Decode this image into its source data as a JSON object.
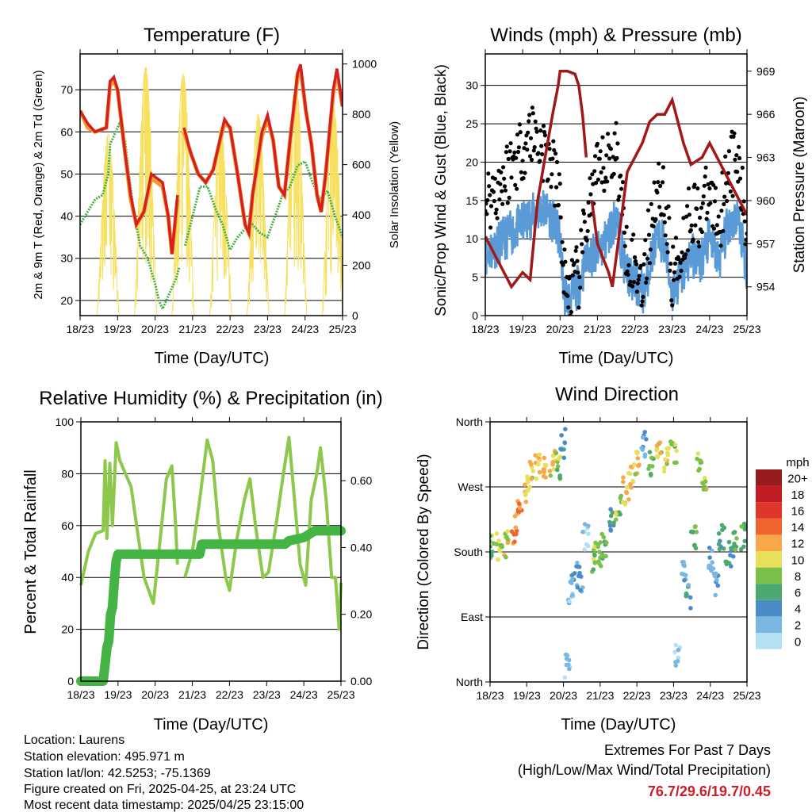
{
  "panels": {
    "temperature": {
      "title": "Temperature (F)",
      "xlabel": "Time (Day/UTC)",
      "ylabel_left": "2m & 9m T (Red, Orange) & 2m Td (Green)",
      "ylabel_right": "Solar Insolation (Yellow)"
    },
    "winds": {
      "title": "Winds (mph) & Pressure (mb)",
      "xlabel": "Time (Day/UTC)",
      "ylabel_left": "Sonic/Prop Wind & Gust (Blue, Black)",
      "ylabel_right": "Station Pressure (Maroon)"
    },
    "humidity": {
      "title": "Relative Humidity (%) & Precipitation (in)",
      "xlabel": "Time (Day/UTC)",
      "ylabel_left": "Percent & Total Rainfall"
    },
    "direction": {
      "title": "Wind Direction",
      "xlabel": "Time (Day/UTC)",
      "ylabel_left": "Direction (Colored By Speed)"
    }
  },
  "info": {
    "location": "Location: Laurens",
    "elevation": "Station elevation: 495.971 m",
    "latlon": "Station lat/lon: 42.5253; -75.1369",
    "created": "Figure created on Fri, 2025-04-25, at 23:24 UTC",
    "recent": "Most recent data timestamp: 2025/04/25 23:15:00"
  },
  "extremes": {
    "heading": "Extremes For Past 7 Days",
    "subheading": "(High/Low/Max Wind/Total Precipitation)",
    "values": "76.7/29.6/19.7/0.45"
  },
  "legend": {
    "title": "mph",
    "labels": [
      "0",
      "2",
      "4",
      "6",
      "8",
      "10",
      "12",
      "14",
      "16",
      "18",
      "20+"
    ],
    "colors": [
      "#b3e0f5",
      "#7ab8e3",
      "#4a8cc6",
      "#4aa870",
      "#7cc04c",
      "#e6e05a",
      "#f8a848",
      "#f06430",
      "#e0352a",
      "#c01c22",
      "#951b1e"
    ]
  },
  "colors": {
    "t2m": "#d42020",
    "t9m": "#f59a30",
    "td": "#44b040",
    "solar": "#f7e060",
    "wind": "#5a9ad6",
    "gust": "#000000",
    "pressure": "#a01818",
    "rh": "#8cc84c",
    "precip": "#44b444"
  },
  "chart_data": [
    {
      "type": "line",
      "title": "Temperature (F)",
      "xlabel": "Time (Day/UTC)",
      "x_ticks": [
        "18/23",
        "19/23",
        "20/23",
        "21/23",
        "22/23",
        "23/23",
        "24/23",
        "25/23"
      ],
      "xlim": [
        0,
        7
      ],
      "ylim": [
        16.4,
        78.5
      ],
      "y_ticks": [
        20,
        30,
        40,
        50,
        60,
        70
      ],
      "y2lim": [
        0,
        1040
      ],
      "y2_ticks": [
        0,
        200,
        400,
        600,
        800,
        1000
      ],
      "grid": true,
      "series": [
        {
          "name": "2m T",
          "axis": "left",
          "x": [
            0,
            0.2,
            0.4,
            0.7,
            0.8,
            0.9,
            1.0,
            1.2,
            1.35,
            1.5,
            1.7,
            1.9,
            2.2,
            2.35,
            2.45,
            2.6,
            2.62,
            2.75,
            2.77,
            2.95,
            3.15,
            3.35,
            3.55,
            3.65,
            3.85,
            4.0,
            4.2,
            4.4,
            4.5,
            4.6,
            4.85,
            5.0,
            5.15,
            5.3,
            5.45,
            5.6,
            5.8,
            5.88,
            6.02,
            6.17,
            6.32,
            6.43,
            6.55,
            6.75,
            6.85,
            7.0
          ],
          "y": [
            65,
            62,
            60,
            61,
            72,
            73,
            70,
            55,
            45,
            38,
            41,
            50,
            48,
            40,
            31,
            45,
            null,
            null,
            61,
            55,
            50,
            48,
            51,
            55,
            63,
            61,
            50,
            38,
            36,
            45,
            60,
            64,
            58,
            47,
            45,
            58,
            74,
            76,
            65,
            57,
            45,
            41,
            50,
            70,
            75,
            66
          ]
        },
        {
          "name": "9m T",
          "axis": "left",
          "x": [
            0,
            0.2,
            0.4,
            0.7,
            0.8,
            0.9,
            1.0,
            1.2,
            1.35,
            1.5,
            1.7,
            1.9,
            2.2,
            2.35,
            2.45,
            2.6,
            2.62,
            2.75,
            2.77,
            2.95,
            3.15,
            3.35,
            3.55,
            3.65,
            3.85,
            4.0,
            4.2,
            4.4,
            4.5,
            4.6,
            4.85,
            5.0,
            5.15,
            5.3,
            5.45,
            5.6,
            5.8,
            5.88,
            6.02,
            6.17,
            6.32,
            6.43,
            6.55,
            6.75,
            6.85,
            7.0
          ],
          "y": [
            65,
            61,
            60,
            61,
            71,
            72,
            70,
            55,
            44,
            38,
            41,
            49,
            47,
            40,
            31,
            44,
            null,
            null,
            60,
            55,
            50,
            48,
            51,
            55,
            62,
            61,
            50,
            38,
            36,
            45,
            59,
            63,
            58,
            47,
            45,
            58,
            73,
            75,
            65,
            57,
            45,
            41,
            50,
            69,
            74,
            66
          ]
        },
        {
          "name": "2m Td",
          "axis": "left",
          "x": [
            0,
            0.4,
            0.6,
            0.75,
            0.8,
            0.95,
            1.05,
            1.2,
            1.3,
            1.45,
            1.6,
            1.8,
            2.0,
            2.1,
            2.2,
            2.4,
            2.55,
            2.65,
            2.7,
            2.78,
            2.8,
            3.0,
            3.2,
            3.4,
            3.6,
            3.8,
            4.0,
            4.2,
            4.4,
            4.6,
            4.8,
            5.0,
            5.2,
            5.4,
            5.6,
            5.8,
            6.0,
            6.2,
            6.4,
            6.6,
            6.8,
            7.0
          ],
          "y": [
            38,
            44,
            45,
            50,
            57,
            60,
            62,
            58,
            50,
            40,
            33,
            30,
            24,
            20,
            18,
            22,
            25,
            28,
            null,
            null,
            33,
            40,
            47,
            47,
            42,
            38,
            32,
            35,
            37,
            38,
            36,
            35,
            40,
            45,
            47,
            52,
            53,
            48,
            44,
            46,
            40,
            35
          ]
        },
        {
          "name": "Solar Insolation (daily peak)",
          "axis": "right",
          "x": [
            0.75,
            1.75,
            2.75,
            3.75,
            4.75,
            5.75,
            6.75
          ],
          "y": [
            720,
            990,
            960,
            750,
            800,
            960,
            850
          ]
        }
      ]
    },
    {
      "type": "scatter",
      "title": "Winds (mph) & Pressure (mb)",
      "xlabel": "Time (Day/UTC)",
      "x_ticks": [
        "18/23",
        "19/23",
        "20/23",
        "21/23",
        "22/23",
        "23/23",
        "24/23",
        "25/23"
      ],
      "xlim": [
        0,
        7
      ],
      "ylim": [
        0,
        34.1
      ],
      "y_ticks": [
        0,
        5,
        10,
        15,
        20,
        25,
        30
      ],
      "y2lim": [
        952,
        970.2
      ],
      "y2_ticks": [
        954,
        957,
        960,
        963,
        966,
        969
      ],
      "grid": true,
      "series": [
        {
          "name": "Wind",
          "axis": "left",
          "x": [
            0,
            0.25,
            0.5,
            0.75,
            1,
            1.25,
            1.5,
            1.75,
            2,
            2.1,
            2.25,
            2.5,
            2.75,
            3,
            3.25,
            3.5,
            3.75,
            4,
            4.25,
            4.5,
            4.75,
            5,
            5.25,
            5.5,
            5.75,
            6,
            6.25,
            6.5,
            6.75,
            7
          ],
          "y": [
            8,
            9,
            10,
            11,
            12,
            13,
            14,
            13,
            10,
            3,
            2,
            4,
            8,
            8,
            10,
            13,
            6,
            4,
            3,
            9,
            10,
            3,
            5,
            8,
            7,
            10,
            7,
            12,
            13,
            6
          ]
        },
        {
          "name": "Gust",
          "axis": "left",
          "x": [
            0,
            0.25,
            0.5,
            0.75,
            1,
            1.25,
            1.5,
            1.75,
            2,
            2.1,
            2.25,
            2.5,
            2.75,
            3,
            3.25,
            3.5,
            3.75,
            4,
            4.25,
            4.5,
            4.75,
            5,
            5.25,
            5.5,
            5.75,
            6,
            6.25,
            6.5,
            6.75,
            7
          ],
          "y": [
            15,
            16,
            18,
            20,
            22,
            24,
            22,
            20,
            15,
            5,
            3,
            5,
            14,
            18,
            20,
            22,
            10,
            6,
            5,
            15,
            17,
            5,
            9,
            14,
            13,
            16,
            12,
            20,
            20,
            10
          ]
        },
        {
          "name": "Station Pressure",
          "axis": "right",
          "x": [
            0,
            0.3,
            0.5,
            0.7,
            1.0,
            1.2,
            1.4,
            1.6,
            1.8,
            1.95,
            2.0,
            2.2,
            2.4,
            2.5,
            2.6,
            2.7,
            2.75,
            2.85,
            3.0,
            3.3,
            3.4,
            3.6,
            3.8,
            4.2,
            4.4,
            4.6,
            4.8,
            5.0,
            5.3,
            5.5,
            5.8,
            6.0,
            6.4,
            6.6,
            7.0
          ],
          "y": [
            957.5,
            956,
            955,
            954,
            955,
            954.5,
            960,
            963,
            966,
            968,
            969,
            969,
            968.8,
            968,
            966,
            963,
            null,
            960,
            957,
            955,
            954,
            958,
            962,
            964,
            965.5,
            966,
            966,
            967,
            964,
            962.5,
            963,
            964,
            962,
            961,
            959
          ]
        }
      ]
    },
    {
      "type": "line",
      "title": "Relative Humidity (%) & Precipitation (in)",
      "xlabel": "Time (Day/UTC)",
      "x_ticks": [
        "18/23",
        "19/23",
        "20/23",
        "21/23",
        "22/23",
        "23/23",
        "24/23",
        "25/23"
      ],
      "xlim": [
        0,
        7
      ],
      "ylim": [
        0,
        100
      ],
      "y_ticks": [
        0,
        20,
        40,
        60,
        80,
        100
      ],
      "y2lim": [
        0,
        0.776
      ],
      "y2_ticks": [
        "0.00",
        "0.20",
        "0.40",
        "0.60"
      ],
      "grid": true,
      "series": [
        {
          "name": "Relative Humidity",
          "axis": "left",
          "x": [
            0,
            0.2,
            0.4,
            0.6,
            0.65,
            0.7,
            0.78,
            0.85,
            0.95,
            1.05,
            1.2,
            1.35,
            1.5,
            1.7,
            1.95,
            2.1,
            2.3,
            2.45,
            2.55,
            2.6,
            2.7,
            2.8,
            3.0,
            3.2,
            3.4,
            3.55,
            3.7,
            3.9,
            4.0,
            4.2,
            4.4,
            4.55,
            4.7,
            4.9,
            5.05,
            5.25,
            5.45,
            5.6,
            5.75,
            5.9,
            6.05,
            6.2,
            6.35,
            6.45,
            6.6,
            6.75,
            6.85,
            6.95,
            7.0
          ],
          "y": [
            37,
            50,
            57,
            58,
            85,
            55,
            84,
            60,
            92,
            85,
            80,
            75,
            60,
            40,
            30,
            50,
            78,
            83,
            60,
            45,
            null,
            40,
            50,
            70,
            93,
            85,
            60,
            40,
            35,
            55,
            70,
            78,
            60,
            40,
            42,
            60,
            80,
            94,
            70,
            45,
            37,
            70,
            80,
            90,
            70,
            40,
            40,
            20,
            38
          ]
        },
        {
          "name": "Total Precipitation",
          "axis": "right",
          "x": [
            0,
            0.6,
            0.65,
            0.7,
            0.75,
            0.8,
            0.85,
            0.9,
            0.95,
            1.0,
            3.2,
            3.25,
            5.5,
            5.6,
            6.0,
            6.3,
            7.0
          ],
          "y": [
            0,
            0,
            0.05,
            0.1,
            0.12,
            0.2,
            0.22,
            0.3,
            0.36,
            0.38,
            0.38,
            0.41,
            0.41,
            0.42,
            0.43,
            0.45,
            0.45
          ]
        }
      ]
    },
    {
      "type": "scatter",
      "title": "Wind Direction",
      "xlabel": "Time (Day/UTC)",
      "ylabel": "Direction (Colored By Speed)",
      "x_ticks": [
        "18/23",
        "19/23",
        "20/23",
        "21/23",
        "22/23",
        "23/23",
        "24/23",
        "25/23"
      ],
      "xlim": [
        0,
        7
      ],
      "ylim": [
        0,
        360
      ],
      "y_ticks": [
        "North",
        "East",
        "South",
        "West",
        "North"
      ],
      "y_tick_values": [
        0,
        90,
        180,
        270,
        360
      ],
      "grid": true,
      "points": {
        "x": [
          0.05,
          0.25,
          0.45,
          0.65,
          0.8,
          0.95,
          1.1,
          1.3,
          1.5,
          1.7,
          1.85,
          2.0,
          2.1,
          2.2,
          2.3,
          2.45,
          2.6,
          2.8,
          2.95,
          3.1,
          3.3,
          3.5,
          3.7,
          3.85,
          4.0,
          4.2,
          4.4,
          4.6,
          4.8,
          5.0,
          5.1,
          5.25,
          5.4,
          5.55,
          5.7,
          5.85,
          6.0,
          6.15,
          6.3,
          6.5,
          6.7,
          6.9
        ],
        "dir": [
          190,
          188,
          192,
          210,
          240,
          265,
          285,
          295,
          300,
          305,
          300,
          330,
          20,
          120,
          150,
          140,
          200,
          170,
          180,
          190,
          220,
          240,
          265,
          280,
          300,
          330,
          300,
          320,
          310,
          320,
          40,
          150,
          120,
          200,
          300,
          280,
          170,
          140,
          200,
          180,
          190,
          200
        ],
        "speed": [
          9,
          10,
          11,
          14,
          14,
          12,
          11,
          12,
          12,
          11,
          9,
          5,
          2,
          3,
          4,
          4,
          2,
          9,
          10,
          8,
          6,
          9,
          12,
          12,
          11,
          4,
          8,
          11,
          11,
          9,
          2,
          4,
          5,
          8,
          10,
          11,
          4,
          5,
          6,
          6,
          7,
          8
        ]
      }
    }
  ]
}
